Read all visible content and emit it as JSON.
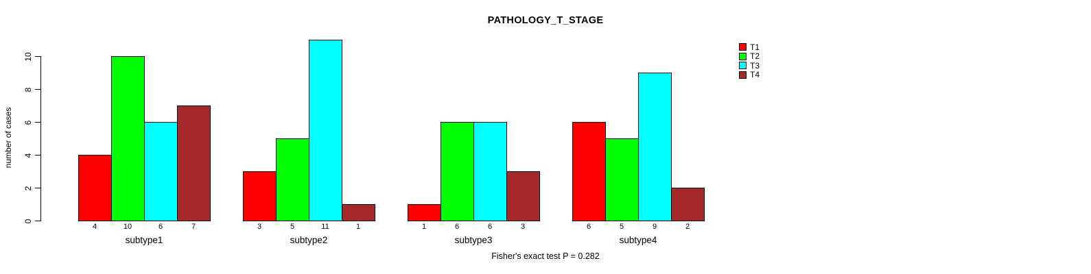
{
  "chart_data": {
    "type": "bar",
    "title": "PATHOLOGY_T_STAGE",
    "ylabel": "number of cases",
    "xlabel": "",
    "categories": [
      "subtype1",
      "subtype2",
      "subtype3",
      "subtype4"
    ],
    "series": [
      {
        "name": "T1",
        "color": "#ff0000",
        "values": [
          4,
          3,
          1,
          6
        ]
      },
      {
        "name": "T2",
        "color": "#00ff00",
        "values": [
          10,
          5,
          6,
          5
        ]
      },
      {
        "name": "T3",
        "color": "#00ffff",
        "values": [
          6,
          11,
          6,
          9
        ]
      },
      {
        "name": "T4",
        "color": "#a52a2a",
        "values": [
          7,
          1,
          3,
          2
        ]
      }
    ],
    "yticks": [
      0,
      2,
      4,
      6,
      8,
      10
    ],
    "ylim": [
      0,
      11
    ],
    "grid": false,
    "bar_value_labels_shown": true,
    "bar_border_color": "#000000",
    "legend_position": "top-right",
    "legend_entries": [
      "T1",
      "T2",
      "T3",
      "T4"
    ],
    "annotation": "Fisher's exact test P = 0.282"
  }
}
